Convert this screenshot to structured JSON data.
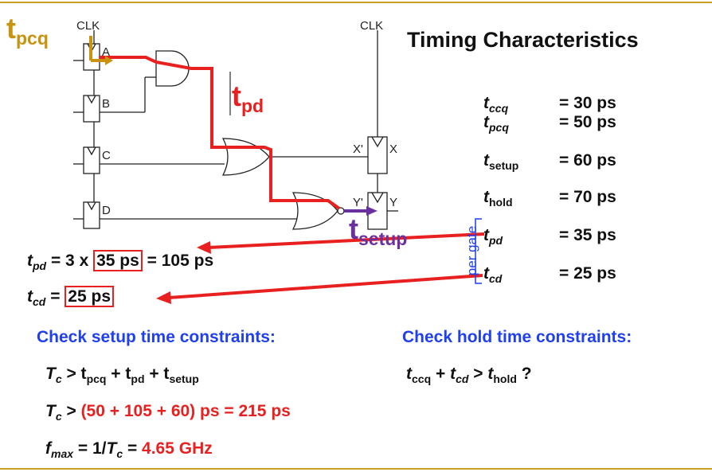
{
  "colors": {
    "accent_line": "#c8a020",
    "critical_path": "#e8201f",
    "setup_arrow": "#6b2fa0",
    "heading_blue": "#1f3ff0"
  },
  "circuit": {
    "clk_left": "CLK",
    "clk_right": "CLK",
    "reg_labels": [
      "A",
      "B",
      "C",
      "D"
    ],
    "reg_x_in": "X'",
    "reg_x_out": "X",
    "reg_y_in": "Y'",
    "reg_y_out": "Y"
  },
  "annotations": {
    "tpcq_main": "t",
    "tpcq_sub": "pcq",
    "tpd_main": "t",
    "tpd_sub": "pd",
    "tsetup_main": "t",
    "tsetup_sub": "setup",
    "per_gate": "per gate"
  },
  "timing": {
    "title": "Timing Characteristics",
    "rows": [
      {
        "sym": "t",
        "sub": "ccq",
        "value": "= 30 ps"
      },
      {
        "sym": "t",
        "sub": "pcq",
        "value": "= 50 ps"
      },
      {
        "sym": "t",
        "sub": "setup",
        "value": "= 60 ps"
      },
      {
        "sym": "t",
        "sub": "hold",
        "value": "= 70 ps"
      },
      {
        "sym": "t",
        "sub": "pd",
        "value": "= 35 ps"
      },
      {
        "sym": "t",
        "sub": "cd",
        "value": "= 25 ps"
      }
    ]
  },
  "equations": {
    "tpd_left": "t",
    "tpd_sub": "pd",
    "tpd_mid": "= 3 x",
    "tpd_box": "35 ps",
    "tpd_result": "= 105 ps",
    "tcd_left": "t",
    "tcd_sub": "cd",
    "tcd_eq": "=",
    "tcd_box": "25 ps"
  },
  "setup": {
    "heading": "Check setup time constraints:",
    "line1_T": "T",
    "line1_c": "c",
    "line1_rest_a": " > t",
    "line1_pcq": "pcq",
    "line1_plus1": " + t",
    "line1_pd": "pd",
    "line1_plus2": " + t",
    "line1_setup": "setup",
    "line2_T": "T",
    "line2_c": "c",
    "line2_gt": " > ",
    "line2_red": "(50 + 105 + 60) ps = 215 ps",
    "line3_f": "f",
    "line3_max": "max",
    "line3_mid": " = 1/",
    "line3_T": "T",
    "line3_c": "c",
    "line3_eq": " = ",
    "line3_red": "4.65 GHz"
  },
  "hold": {
    "heading": "Check hold time constraints:",
    "t1": "t",
    "ccq": "ccq",
    "plus": " + ",
    "t2": "t",
    "cd": "cd",
    "gt": " > ",
    "t3": "t",
    "hold_sub": "hold",
    "q": " ?"
  }
}
